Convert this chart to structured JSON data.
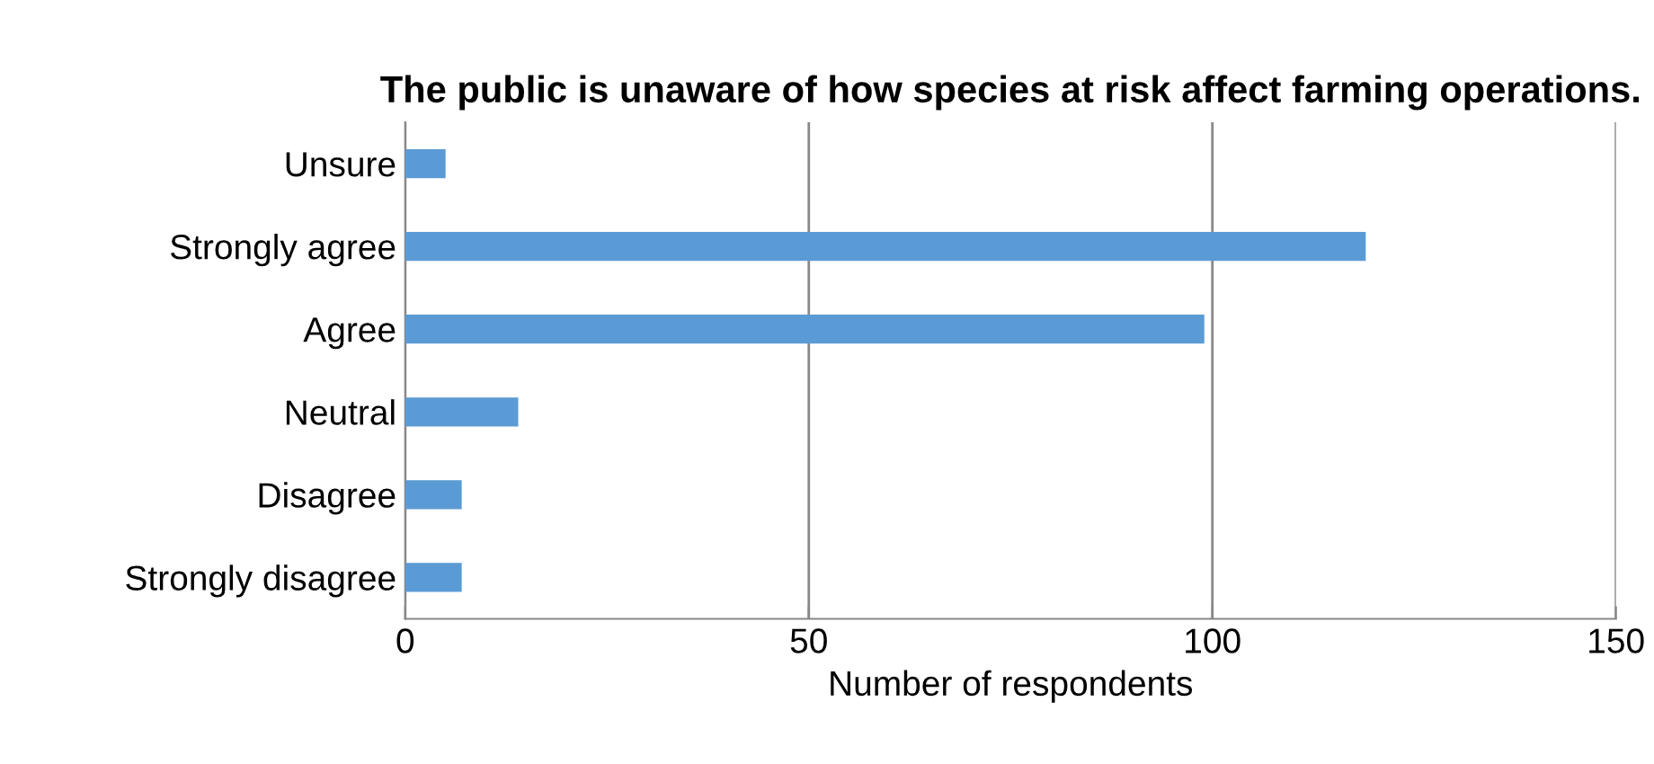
{
  "chart_data": {
    "type": "bar",
    "orientation": "horizontal",
    "title": "The public is unaware of how species at risk affect farming operations.",
    "xlabel": "Number of respondents",
    "categories": [
      "Unsure",
      "Strongly agree",
      "Agree",
      "Neutral",
      "Disagree",
      "Strongly disagree"
    ],
    "values": [
      5,
      119,
      99,
      14,
      7,
      7
    ],
    "color": "#5b9bd5",
    "xlim": [
      0,
      150
    ],
    "xticks": [
      0,
      50,
      100,
      150
    ],
    "grid": "x",
    "legend": false
  }
}
